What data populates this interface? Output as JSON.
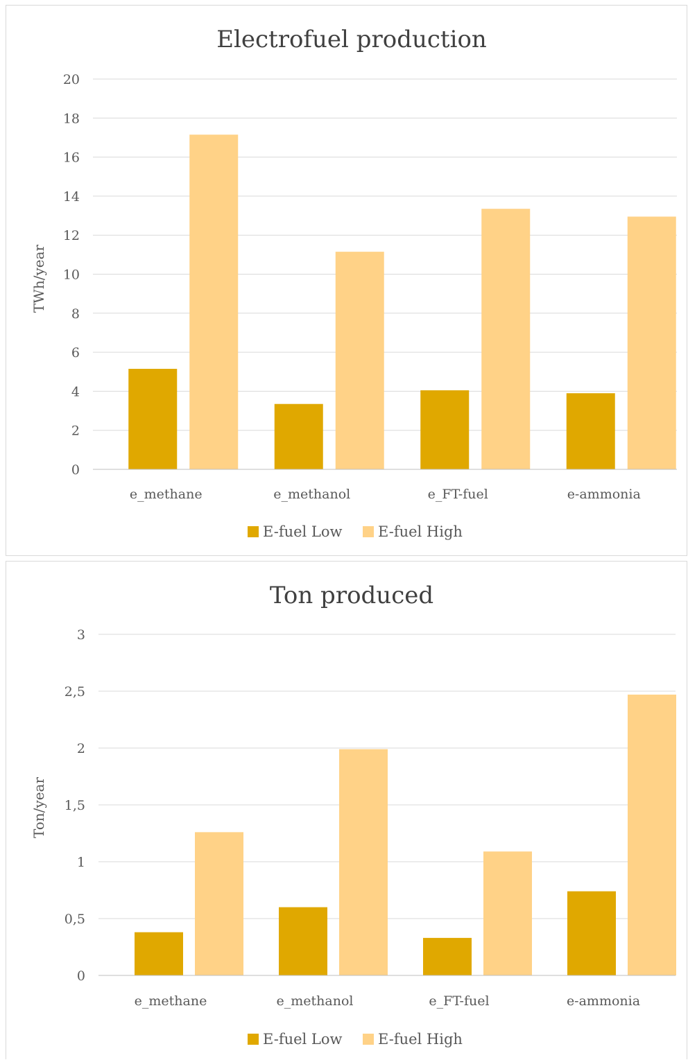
{
  "chart_data": [
    {
      "type": "bar",
      "title": "Electrofuel production",
      "ylabel": "TWh/year",
      "xlabel": "",
      "ylim": [
        0,
        20
      ],
      "yticks": [
        "0",
        "2",
        "4",
        "6",
        "8",
        "10",
        "12",
        "14",
        "16",
        "18",
        "20"
      ],
      "categories": [
        "e_methane",
        "e_methanol",
        "e_FT-fuel",
        "e-ammonia"
      ],
      "series": [
        {
          "name": "E-fuel Low",
          "color": "#e0a800",
          "values": [
            5.15,
            3.35,
            4.05,
            3.9
          ]
        },
        {
          "name": "E-fuel High",
          "color": "#ffd287",
          "values": [
            17.15,
            11.15,
            13.35,
            12.95
          ]
        }
      ],
      "grid": true,
      "legend": "bottom"
    },
    {
      "type": "bar",
      "title": "Ton produced",
      "ylabel": "Ton/year",
      "xlabel": "",
      "ylim": [
        0,
        3
      ],
      "yticks": [
        "0",
        "0,5",
        "1",
        "1,5",
        "2",
        "2,5",
        "3"
      ],
      "categories": [
        "e_methane",
        "e_methanol",
        "e_FT-fuel",
        "e-ammonia"
      ],
      "series": [
        {
          "name": "E-fuel Low",
          "color": "#e0a800",
          "values": [
            0.38,
            0.6,
            0.33,
            0.74
          ]
        },
        {
          "name": "E-fuel High",
          "color": "#ffd287",
          "values": [
            1.26,
            1.99,
            1.09,
            2.47
          ]
        }
      ],
      "grid": true,
      "legend": "bottom"
    }
  ]
}
